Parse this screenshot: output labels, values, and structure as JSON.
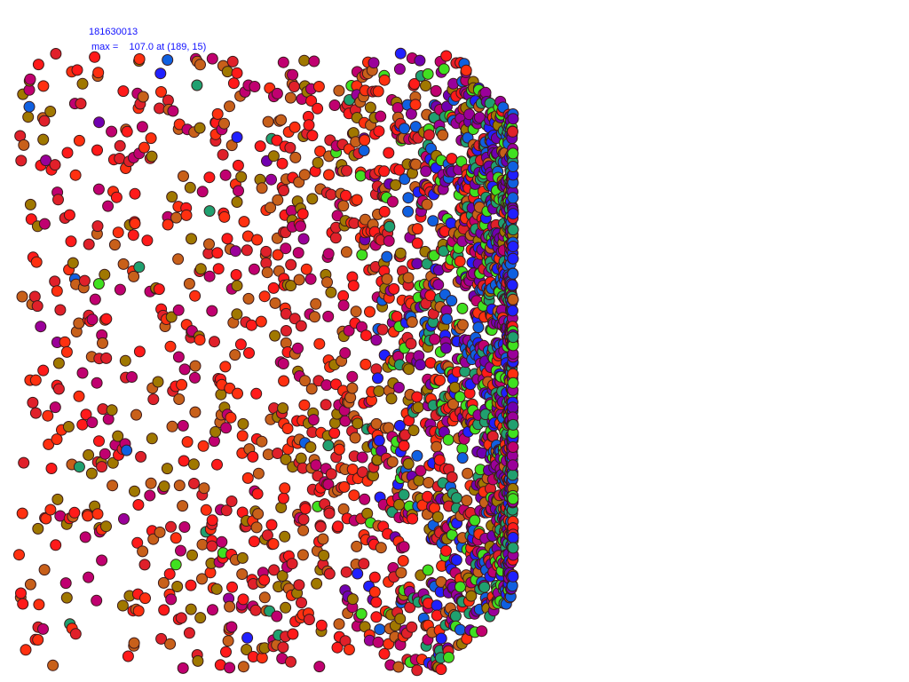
{
  "header": {
    "id_text": "181630013",
    "max_text": "max =    107.0 at (189, 15)"
  },
  "plot": {
    "type": "scatter",
    "marker": "circle",
    "palette_outer": [
      "#ff1a1a",
      "#e0202a",
      "#c8601a",
      "#a07800",
      "#c00070",
      "#ff3010"
    ],
    "palette_inner": [
      "#2020ff",
      "#1060e0",
      "#20a070",
      "#40e020",
      "#7000b0",
      "#9a009a"
    ],
    "outline_color": "#3a1a1a"
  }
}
